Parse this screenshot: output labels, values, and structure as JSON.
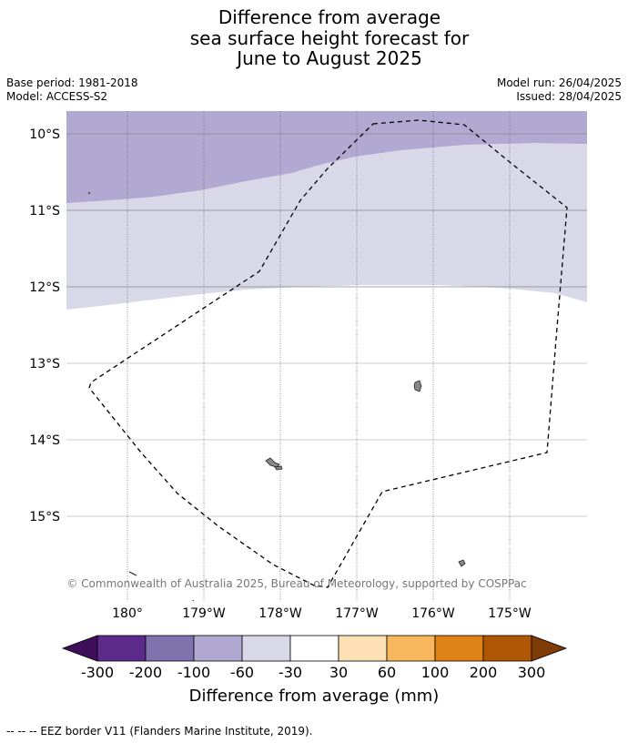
{
  "title": {
    "line1": "Difference from average",
    "line2": "sea surface height forecast for",
    "line3": "June to August 2025"
  },
  "meta": {
    "base_period": "Base period: 1981-2018",
    "model": "Model: ACCESS-S2",
    "model_run": "Model run: 26/04/2025",
    "issued": "Issued: 28/04/2025"
  },
  "map": {
    "lat_labels": [
      "10°S",
      "11°S",
      "12°S",
      "13°S",
      "14°S",
      "15°S"
    ],
    "lon_labels": [
      "180°",
      "179°W",
      "178°W",
      "177°W",
      "176°W",
      "175°W"
    ],
    "copyright": "© Commonwealth of Australia 2025, Bureau of Meteorology, supported by COSPPac",
    "fill_colors": {
      "-200 to -100": "#b1a9d1",
      "-100 to -60": "#b1a9d1",
      "-60 to -30": "#d8d8e9"
    }
  },
  "colorbar": {
    "tick_labels": [
      "-300",
      "-200",
      "-100",
      "-60",
      "-30",
      "30",
      "60",
      "100",
      "200",
      "300"
    ],
    "colors": [
      "#3f0f5c",
      "#5c2a8a",
      "#8072ad",
      "#b1a9d1",
      "#d8d8e9",
      "#ffffff",
      "#fde0b3",
      "#f8b65d",
      "#e08316",
      "#b05706",
      "#7f3b08"
    ],
    "label": "Difference from average (mm)"
  },
  "footer": {
    "eez_legend": "--  --  -- EEZ border V11 (Flanders Marine Institute, 2019)."
  }
}
